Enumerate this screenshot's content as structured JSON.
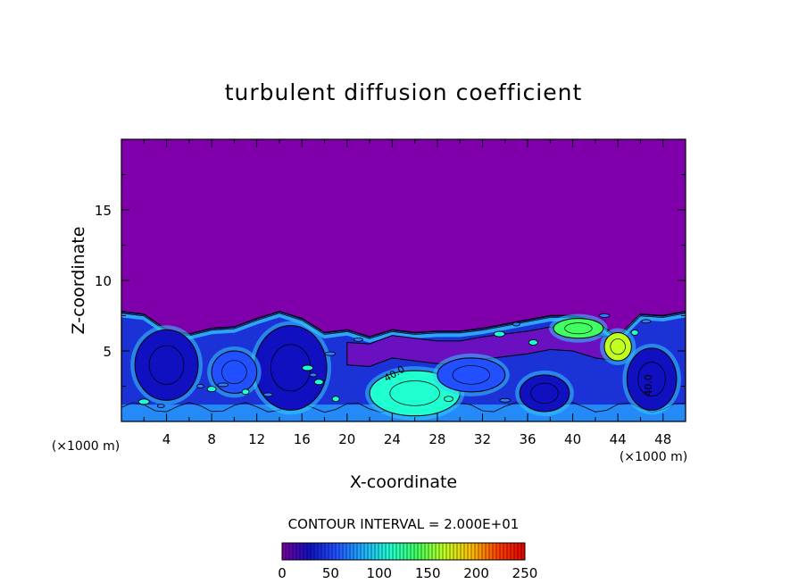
{
  "chart_data": {
    "type": "heatmap",
    "title": "turbulent diffusion coefficient",
    "xlabel": "X-coordinate",
    "ylabel": "Z-coordinate",
    "x_unit_label": "(×1000 m)",
    "z_unit_label": "(×1000 m)",
    "xlim": [
      0,
      50
    ],
    "ylim": [
      0,
      20
    ],
    "x_ticks": [
      4,
      8,
      12,
      16,
      20,
      24,
      28,
      32,
      36,
      40,
      44,
      48
    ],
    "x_tick_labels": [
      "4",
      "8",
      "12",
      "16",
      "20",
      "24",
      "28",
      "32",
      "36",
      "40",
      "44",
      "48"
    ],
    "y_ticks": [
      5,
      10,
      15
    ],
    "y_tick_labels": [
      "5",
      "10",
      "15"
    ],
    "contour_interval_text": "CONTOUR INTERVAL = 2.000E+01",
    "contour_label": "40.0",
    "colorbar": {
      "range": [
        0,
        250
      ],
      "ticks": [
        0,
        50,
        100,
        150,
        200,
        250
      ],
      "tick_labels": [
        "0",
        "50",
        "100",
        "150",
        "200",
        "250"
      ],
      "colors": [
        "#7a00a0",
        "#1010c0",
        "#2050ff",
        "#20b0ff",
        "#20ffd0",
        "#40ff60",
        "#c0ff20",
        "#ffc000",
        "#ff4000",
        "#e00000"
      ]
    },
    "background_color": "#7f00aa",
    "boundary_layer_top": [
      [
        0,
        7.8
      ],
      [
        2,
        7.6
      ],
      [
        4,
        6.5
      ],
      [
        6,
        6.2
      ],
      [
        8,
        6.6
      ],
      [
        10,
        6.7
      ],
      [
        12,
        7.3
      ],
      [
        14,
        7.8
      ],
      [
        16,
        7.3
      ],
      [
        18,
        6.3
      ],
      [
        20,
        6.5
      ],
      [
        22,
        6.0
      ],
      [
        24,
        6.5
      ],
      [
        26,
        6.3
      ],
      [
        28,
        6.4
      ],
      [
        30,
        6.4
      ],
      [
        32,
        6.6
      ],
      [
        34,
        6.9
      ],
      [
        36,
        7.2
      ],
      [
        38,
        7.5
      ],
      [
        40,
        7.5
      ],
      [
        42,
        7.1
      ],
      [
        44,
        6.0
      ],
      [
        46,
        7.6
      ],
      [
        48,
        7.5
      ],
      [
        50,
        7.8
      ]
    ],
    "inversion_layer": [
      [
        20,
        4.0
      ],
      [
        22,
        3.9
      ],
      [
        24,
        4.5
      ],
      [
        26,
        4.3
      ],
      [
        28,
        4.1
      ],
      [
        30,
        4.1
      ],
      [
        32,
        4.4
      ],
      [
        34,
        4.6
      ],
      [
        36,
        4.8
      ],
      [
        38,
        5.1
      ],
      [
        40,
        5.0
      ],
      [
        42,
        4.5
      ],
      [
        44,
        4.3
      ]
    ],
    "eddies": [
      {
        "x": 4.0,
        "z": 4.0,
        "rx": 2.8,
        "rz": 2.5,
        "value": 30
      },
      {
        "x": 15.0,
        "z": 3.8,
        "rx": 3.2,
        "rz": 3.0,
        "value": 30
      },
      {
        "x": 10.0,
        "z": 3.5,
        "rx": 2.0,
        "rz": 1.5,
        "value": 50
      },
      {
        "x": 26.0,
        "z": 2.0,
        "rx": 4.0,
        "rz": 1.6,
        "value": 110
      },
      {
        "x": 31.0,
        "z": 3.3,
        "rx": 3.0,
        "rz": 1.2,
        "value": 60
      },
      {
        "x": 37.5,
        "z": 2.0,
        "rx": 2.2,
        "rz": 1.3,
        "value": 40
      },
      {
        "x": 40.5,
        "z": 6.6,
        "rx": 2.2,
        "rz": 0.7,
        "value": 140
      },
      {
        "x": 44.0,
        "z": 5.3,
        "rx": 1.2,
        "rz": 1.0,
        "value": 170
      },
      {
        "x": 47.0,
        "z": 3.0,
        "rx": 2.2,
        "rz": 2.2,
        "value": 40
      }
    ],
    "scattered_cells": [
      [
        7,
        2.5
      ],
      [
        8,
        2.3
      ],
      [
        9,
        2.6
      ],
      [
        11,
        2.1
      ],
      [
        13,
        1.9
      ],
      [
        16.5,
        3.8
      ],
      [
        17,
        3.3
      ],
      [
        17.5,
        2.8
      ],
      [
        18.5,
        4.8
      ],
      [
        19,
        1.6
      ],
      [
        21,
        5.8
      ],
      [
        33.5,
        6.2
      ],
      [
        35,
        6.9
      ],
      [
        36.5,
        5.6
      ],
      [
        42.8,
        7.5
      ],
      [
        45.5,
        6.3
      ],
      [
        46.5,
        7.1
      ],
      [
        2,
        1.4
      ],
      [
        3.5,
        1.1
      ],
      [
        29,
        1.6
      ],
      [
        34,
        1.5
      ]
    ]
  }
}
